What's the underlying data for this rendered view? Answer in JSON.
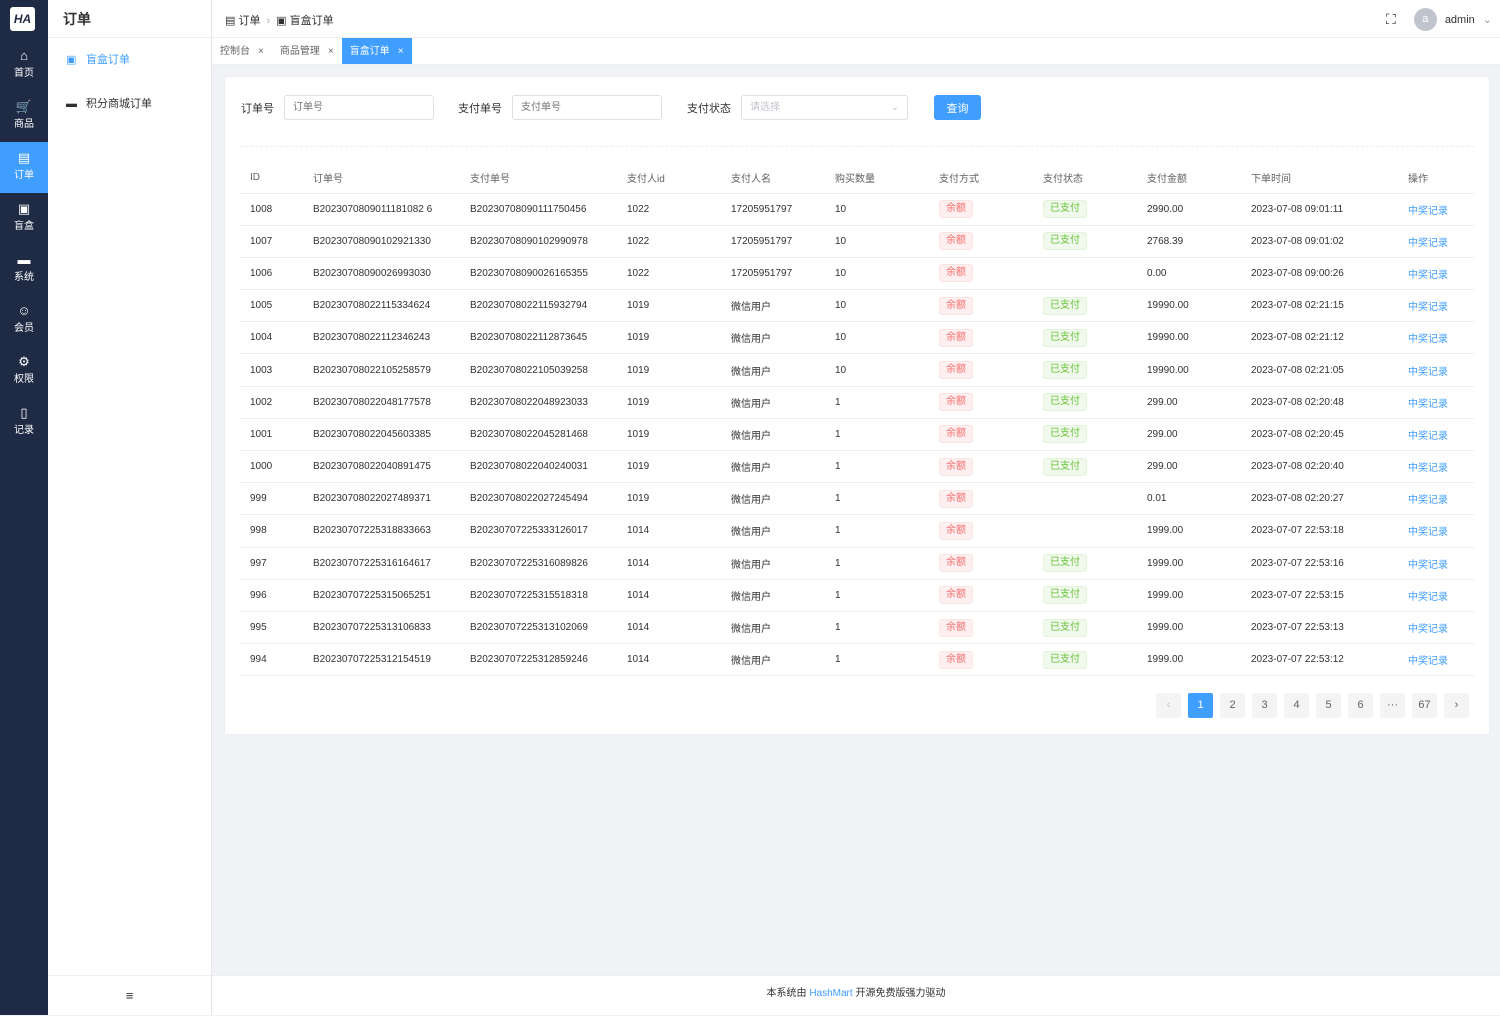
{
  "logo": "HA",
  "rail": [
    {
      "label": "首页",
      "icon": "home-icon",
      "glyph": "⌂"
    },
    {
      "label": "商品",
      "icon": "cart-icon",
      "glyph": "🛒"
    },
    {
      "label": "订单",
      "icon": "document-icon",
      "glyph": "▤",
      "active": true
    },
    {
      "label": "盲盒",
      "icon": "box-icon",
      "glyph": "▣"
    },
    {
      "label": "系统",
      "icon": "monitor-icon",
      "glyph": "▬"
    },
    {
      "label": "会员",
      "icon": "user-icon",
      "glyph": "☺"
    },
    {
      "label": "权限",
      "icon": "gear-icon",
      "glyph": "⚙"
    },
    {
      "label": "记录",
      "icon": "notebook-icon",
      "glyph": "▯"
    }
  ],
  "submenu": {
    "title": "订单",
    "items": [
      {
        "label": "盲盒订单",
        "active": true
      },
      {
        "label": "积分商城订单"
      }
    ],
    "collapse": "≡"
  },
  "breadcrumb": [
    "订单",
    "盲盒订单"
  ],
  "user": {
    "avatar": "a",
    "name": "admin"
  },
  "tabs": [
    {
      "label": "控制台"
    },
    {
      "label": "商品管理"
    },
    {
      "label": "盲盒订单",
      "active": true
    }
  ],
  "filters": {
    "order_label": "订单号",
    "order_placeholder": "订单号",
    "pay_label": "支付单号",
    "pay_placeholder": "支付单号",
    "status_label": "支付状态",
    "status_placeholder": "请选择",
    "query": "查询"
  },
  "columns": [
    "ID",
    "订单号",
    "支付单号",
    "支付人id",
    "支付人名",
    "购买数量",
    "支付方式",
    "支付状态",
    "支付金额",
    "下单时间",
    "操作"
  ],
  "rows": [
    [
      "1008",
      "B2023070809011181082 6",
      "B20230708090111750456",
      "1022",
      "17205951797",
      "10",
      "余额",
      "已支付",
      "2990.00",
      "2023-07-08 09:01:11",
      "中奖记录"
    ],
    [
      "1007",
      "B20230708090102921330",
      "B20230708090102990978",
      "1022",
      "17205951797",
      "10",
      "余额",
      "已支付",
      "2768.39",
      "2023-07-08 09:01:02",
      "中奖记录"
    ],
    [
      "1006",
      "B20230708090026993030",
      "B20230708090026165355",
      "1022",
      "17205951797",
      "10",
      "余额",
      "",
      "0.00",
      "2023-07-08 09:00:26",
      "中奖记录"
    ],
    [
      "1005",
      "B20230708022115334624",
      "B20230708022115932794",
      "1019",
      "微信用户",
      "10",
      "余额",
      "已支付",
      "19990.00",
      "2023-07-08 02:21:15",
      "中奖记录"
    ],
    [
      "1004",
      "B20230708022112346243",
      "B20230708022112873645",
      "1019",
      "微信用户",
      "10",
      "余额",
      "已支付",
      "19990.00",
      "2023-07-08 02:21:12",
      "中奖记录"
    ],
    [
      "1003",
      "B20230708022105258579",
      "B20230708022105039258",
      "1019",
      "微信用户",
      "10",
      "余额",
      "已支付",
      "19990.00",
      "2023-07-08 02:21:05",
      "中奖记录"
    ],
    [
      "1002",
      "B20230708022048177578",
      "B20230708022048923033",
      "1019",
      "微信用户",
      "1",
      "余额",
      "已支付",
      "299.00",
      "2023-07-08 02:20:48",
      "中奖记录"
    ],
    [
      "1001",
      "B20230708022045603385",
      "B20230708022045281468",
      "1019",
      "微信用户",
      "1",
      "余额",
      "已支付",
      "299.00",
      "2023-07-08 02:20:45",
      "中奖记录"
    ],
    [
      "1000",
      "B20230708022040891475",
      "B20230708022040240031",
      "1019",
      "微信用户",
      "1",
      "余额",
      "已支付",
      "299.00",
      "2023-07-08 02:20:40",
      "中奖记录"
    ],
    [
      "999",
      "B20230708022027489371",
      "B20230708022027245494",
      "1019",
      "微信用户",
      "1",
      "余额",
      "",
      "0.01",
      "2023-07-08 02:20:27",
      "中奖记录"
    ],
    [
      "998",
      "B20230707225318833663",
      "B20230707225333126017",
      "1014",
      "微信用户",
      "1",
      "余额",
      "",
      "1999.00",
      "2023-07-07 22:53:18",
      "中奖记录"
    ],
    [
      "997",
      "B20230707225316164617",
      "B20230707225316089826",
      "1014",
      "微信用户",
      "1",
      "余额",
      "已支付",
      "1999.00",
      "2023-07-07 22:53:16",
      "中奖记录"
    ],
    [
      "996",
      "B20230707225315065251",
      "B20230707225315518318",
      "1014",
      "微信用户",
      "1",
      "余额",
      "已支付",
      "1999.00",
      "2023-07-07 22:53:15",
      "中奖记录"
    ],
    [
      "995",
      "B20230707225313106833",
      "B20230707225313102069",
      "1014",
      "微信用户",
      "1",
      "余额",
      "已支付",
      "1999.00",
      "2023-07-07 22:53:13",
      "中奖记录"
    ],
    [
      "994",
      "B20230707225312154519",
      "B20230707225312859246",
      "1014",
      "微信用户",
      "1",
      "余额",
      "已支付",
      "1999.00",
      "2023-07-07 22:53:12",
      "中奖记录"
    ]
  ],
  "pagination": {
    "prev": "‹",
    "pages": [
      "1",
      "2",
      "3",
      "4",
      "5",
      "6",
      "···",
      "67"
    ],
    "current": "1",
    "next": "›"
  },
  "footer": {
    "prefix": "本系统由 ",
    "brand": "HashMart",
    "suffix": " 开源免费版强力驱动"
  }
}
